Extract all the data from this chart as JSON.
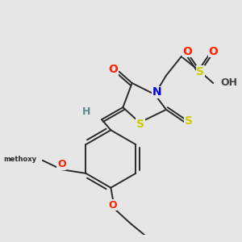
{
  "background_color": "#e6e6e6",
  "fig_size": [
    3.0,
    3.0
  ],
  "dpi": 100,
  "bond_color": "#2a2a2a",
  "bond_width": 1.4,
  "colors": {
    "S": "#cccc00",
    "O": "#ff2200",
    "N": "#0000dd",
    "C": "#2a2a2a",
    "H": "#5a8a8a",
    "gray": "#444444"
  }
}
